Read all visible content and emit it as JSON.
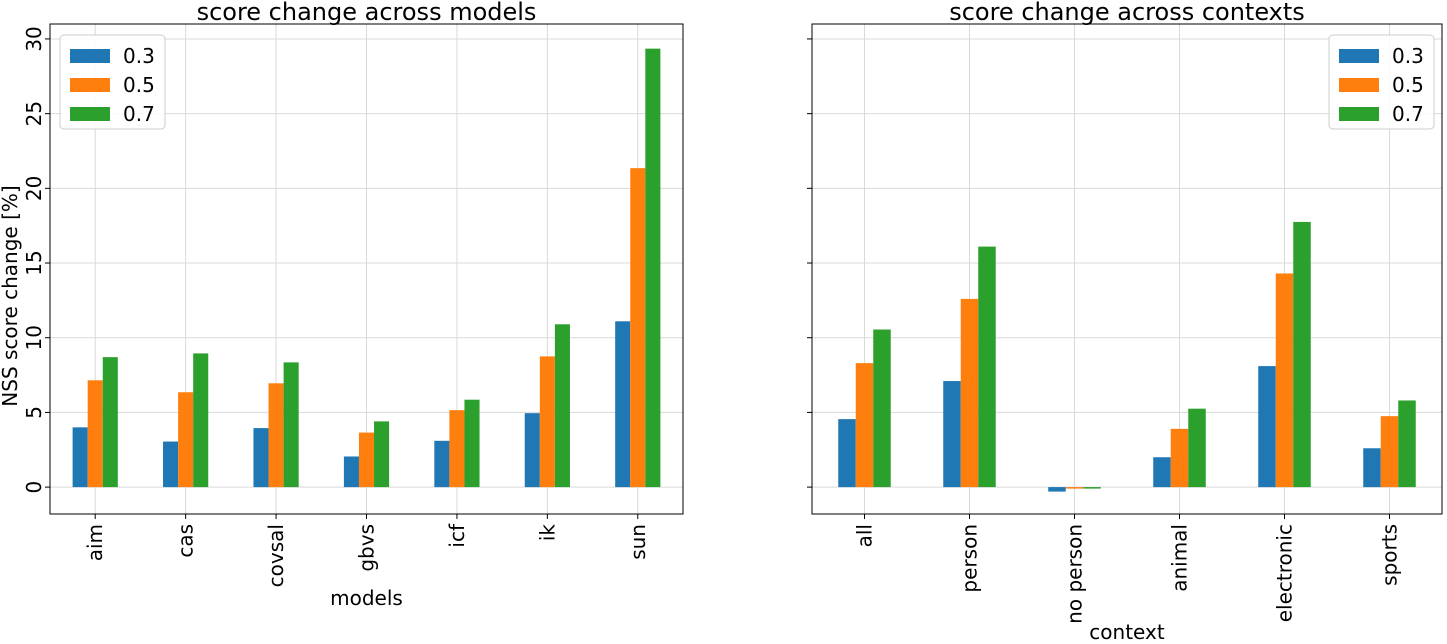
{
  "chart_data": [
    {
      "type": "bar",
      "title": "score change across models",
      "xlabel": "models",
      "ylabel": "NSS score change [%]",
      "categories": [
        "aim",
        "cas",
        "covsal",
        "gbvs",
        "icf",
        "ik",
        "sun"
      ],
      "series": [
        {
          "name": "0.3",
          "color": "#1f77b4",
          "values": [
            4.0,
            3.05,
            3.95,
            2.05,
            3.1,
            4.95,
            11.1
          ]
        },
        {
          "name": "0.5",
          "color": "#ff7f0e",
          "values": [
            7.15,
            6.35,
            6.95,
            3.65,
            5.15,
            8.75,
            21.35
          ]
        },
        {
          "name": "0.7",
          "color": "#2ca02c",
          "values": [
            8.7,
            8.95,
            8.35,
            4.4,
            5.85,
            10.9,
            29.35
          ]
        }
      ],
      "ylim": [
        -1.8,
        31
      ],
      "yticks": [
        0,
        5,
        10,
        15,
        20,
        25,
        30
      ],
      "grid": true,
      "legend": "top-left"
    },
    {
      "type": "bar",
      "title": "score change across contexts",
      "xlabel": "context",
      "ylabel": "",
      "categories": [
        "all",
        "person",
        "no person",
        "animal",
        "electronic",
        "sports"
      ],
      "series": [
        {
          "name": "0.3",
          "color": "#1f77b4",
          "values": [
            4.55,
            7.1,
            -0.3,
            2.0,
            8.1,
            2.6
          ]
        },
        {
          "name": "0.5",
          "color": "#ff7f0e",
          "values": [
            8.3,
            12.6,
            -0.1,
            3.9,
            14.3,
            4.75
          ]
        },
        {
          "name": "0.7",
          "color": "#2ca02c",
          "values": [
            10.55,
            16.1,
            -0.1,
            5.25,
            17.75,
            5.8
          ]
        }
      ],
      "ylim": [
        -1.8,
        31
      ],
      "yticks": [
        0,
        5,
        10,
        15,
        20,
        25,
        30
      ],
      "grid": true,
      "legend": "top-right"
    }
  ]
}
